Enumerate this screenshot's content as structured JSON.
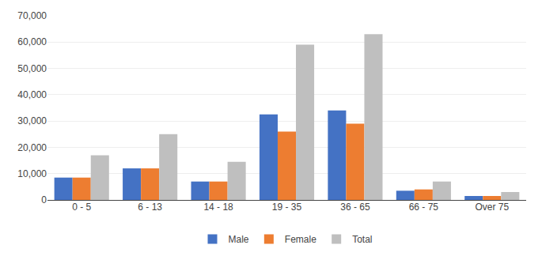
{
  "chart_data": {
    "type": "bar",
    "categories": [
      "0 - 5",
      "6 - 13",
      "14 - 18",
      "19 - 35",
      "36 - 65",
      "66 - 75",
      "Over 75"
    ],
    "series": [
      {
        "name": "Male",
        "color": "#4472c4",
        "values": [
          8500,
          12000,
          7000,
          32500,
          34000,
          3500,
          1500
        ]
      },
      {
        "name": "Female",
        "color": "#ed7d31",
        "values": [
          8500,
          12000,
          7000,
          26000,
          29000,
          4000,
          1500
        ]
      },
      {
        "name": "Total",
        "color": "#bfbfbf",
        "values": [
          17000,
          25000,
          14500,
          59000,
          63000,
          7000,
          3000
        ]
      }
    ],
    "ylim": [
      0,
      70000
    ],
    "yticks": [
      0,
      {
        "value": 10000,
        "label": "10,000"
      },
      {
        "value": 20000,
        "label": "20,000"
      },
      {
        "value": 30000,
        "label": "30,000"
      },
      {
        "value": 40000,
        "label": "40,000"
      },
      {
        "value": 50000,
        "label": "50,000"
      },
      {
        "value": 60000,
        "label": "60,000"
      },
      {
        "value": 70000,
        "label": "70,000"
      }
    ],
    "grid": true,
    "legend": "bottom"
  }
}
